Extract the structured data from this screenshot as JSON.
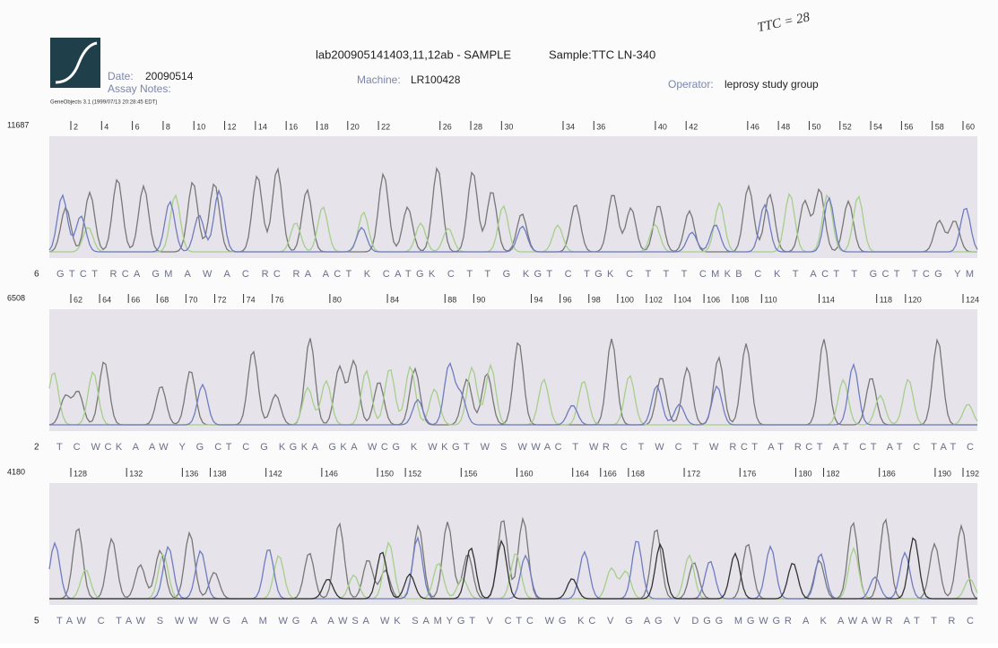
{
  "header": {
    "title": "lab200905141403,11,12ab - SAMPLE",
    "sample": "Sample:TTC LN-340",
    "date_label": "Date:",
    "date": "20090514",
    "assay_notes": "Assay Notes:",
    "software": "GeneObjects 3.1 (1999/07/13 20:28:45 EDT)",
    "machine_label": "Machine:",
    "machine": "LR100428",
    "operator_label": "Operator:",
    "operator": "leprosy study group",
    "handwritten_note": "TTC = 28"
  },
  "panels": [
    {
      "max": "11687",
      "start": "6",
      "positions": [
        2,
        4,
        6,
        8,
        10,
        12,
        14,
        16,
        18,
        20,
        22,
        26,
        28,
        30,
        34,
        36,
        40,
        42,
        46,
        48,
        50,
        52,
        54,
        56,
        58,
        60
      ],
      "bases": "GTCT  RCA GM A  W A C RC RA ACT K  CATGK C T T  G KGT  C TGK  C T T  T CMKB  C K  T ACT T  GCT  TCG YM"
    },
    {
      "max": "6508",
      "start": "2",
      "positions": [
        62,
        64,
        66,
        68,
        70,
        72,
        74,
        76,
        80,
        84,
        88,
        90,
        94,
        96,
        98,
        100,
        102,
        104,
        106,
        108,
        110,
        114,
        118,
        120,
        124
      ],
      "bases": "T C  WCK A  AW Y G  CT  C G  KGKA  GKA WCG K  WKGT  W S WWAC T WR C T W  C T W RCT AT  RCT AT  CT AT  C TAT  C"
    },
    {
      "max": "4180",
      "start": "5",
      "positions": [
        128,
        132,
        136,
        138,
        142,
        146,
        150,
        152,
        156,
        160,
        164,
        166,
        168,
        172,
        176,
        180,
        182,
        186,
        190,
        192
      ],
      "bases": "TAW C TAW S WW WG A M  WG A AWSA WK SAMYGT V CTC WG  KC V  G AG  V  DGG MGWGR A  K AWAWR AT T R C"
    }
  ]
}
